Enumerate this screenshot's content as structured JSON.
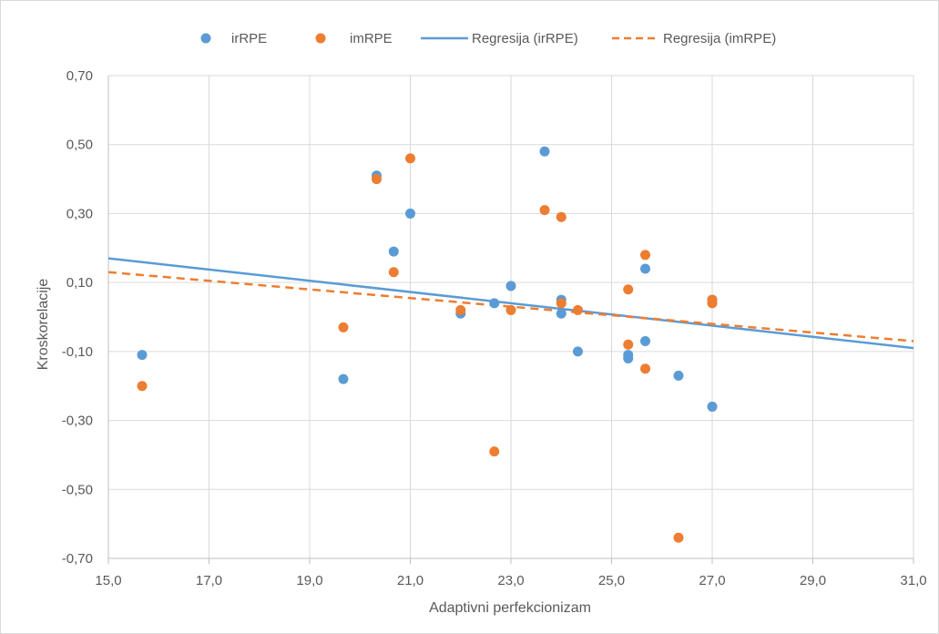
{
  "chart_data": {
    "type": "scatter",
    "title": "",
    "xlabel": "Adaptivni perfekcionizam",
    "ylabel": "Kroskorelacije",
    "xlim": [
      15.0,
      31.0
    ],
    "ylim": [
      -0.7,
      0.7
    ],
    "x_ticks": [
      "15,0",
      "17,0",
      "19,0",
      "21,0",
      "23,0",
      "25,0",
      "27,0",
      "29,0",
      "31,0"
    ],
    "y_ticks": [
      "0,70",
      "0,50",
      "0,30",
      "0,10",
      "-0,10",
      "-0,30",
      "-0,50",
      "-0,70"
    ],
    "grid": true,
    "legend_position": "top",
    "legend": {
      "irRPE": "irRPE",
      "imRPE": "imRPE",
      "reg_ir": "Regresija (irRPE)",
      "reg_im": "Regresija (imRPE)"
    },
    "colors": {
      "irRPE": "#5b9bd5",
      "imRPE": "#ed7d31",
      "grid": "#d9d9d9",
      "axis": "#bfbfbf"
    },
    "series": [
      {
        "name": "irRPE",
        "points": [
          [
            15.67,
            -0.11
          ],
          [
            19.67,
            -0.18
          ],
          [
            20.33,
            0.41
          ],
          [
            20.67,
            0.19
          ],
          [
            21.0,
            0.3
          ],
          [
            22.0,
            0.01
          ],
          [
            22.67,
            0.04
          ],
          [
            23.0,
            0.09
          ],
          [
            23.67,
            0.48
          ],
          [
            24.0,
            0.05
          ],
          [
            24.0,
            0.01
          ],
          [
            24.33,
            -0.1
          ],
          [
            25.33,
            -0.11
          ],
          [
            25.33,
            -0.12
          ],
          [
            25.67,
            0.14
          ],
          [
            25.67,
            -0.07
          ],
          [
            26.33,
            -0.17
          ],
          [
            27.0,
            -0.26
          ],
          [
            27.0,
            0.05
          ]
        ]
      },
      {
        "name": "imRPE",
        "points": [
          [
            15.67,
            -0.2
          ],
          [
            19.67,
            -0.03
          ],
          [
            20.33,
            0.4
          ],
          [
            20.67,
            0.13
          ],
          [
            21.0,
            0.46
          ],
          [
            22.0,
            0.02
          ],
          [
            22.67,
            -0.39
          ],
          [
            23.0,
            0.02
          ],
          [
            23.67,
            0.31
          ],
          [
            24.0,
            0.29
          ],
          [
            24.0,
            0.04
          ],
          [
            24.33,
            0.02
          ],
          [
            25.33,
            0.08
          ],
          [
            25.33,
            -0.08
          ],
          [
            25.67,
            0.18
          ],
          [
            25.67,
            -0.15
          ],
          [
            26.33,
            -0.64
          ],
          [
            27.0,
            0.04
          ],
          [
            27.0,
            0.05
          ]
        ]
      }
    ],
    "regressions": [
      {
        "name": "Regresija (irRPE)",
        "style": "solid",
        "points": [
          [
            15.0,
            0.17
          ],
          [
            31.0,
            -0.09
          ]
        ]
      },
      {
        "name": "Regresija (imRPE)",
        "style": "dashed",
        "points": [
          [
            15.0,
            0.13
          ],
          [
            31.0,
            -0.07
          ]
        ]
      }
    ]
  }
}
